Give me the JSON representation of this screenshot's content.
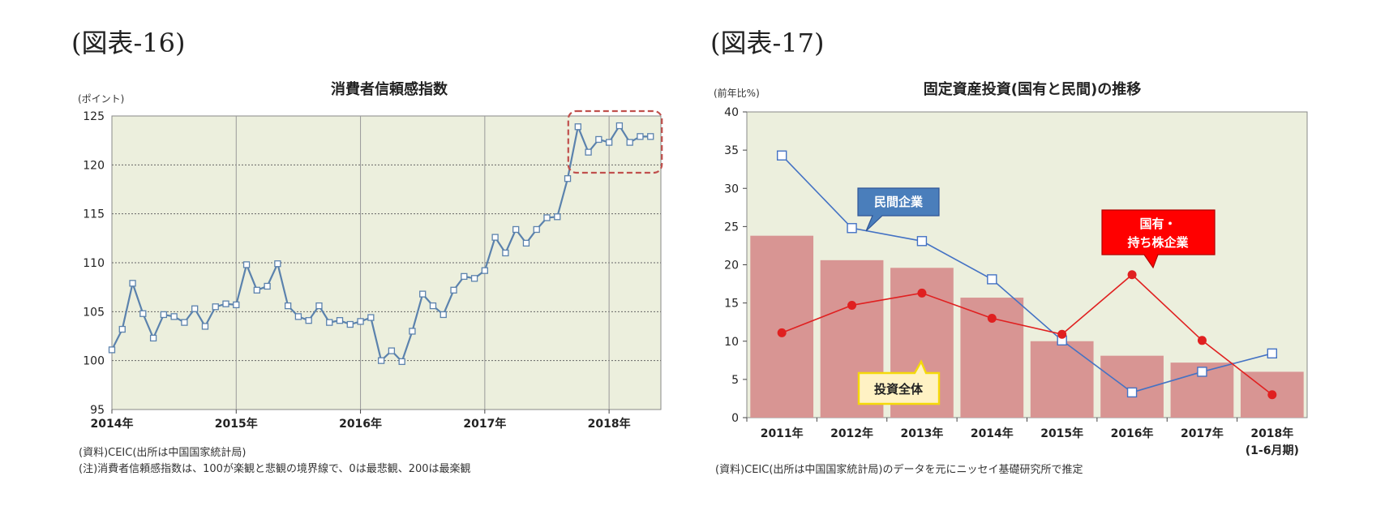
{
  "fig1": {
    "heading": "(図表-16)",
    "unit": "(ポイント)",
    "notes": [
      "(資料)CEIC(出所は中国国家統計局)",
      "(注)消費者信頼感指数は、100が楽観と悲観の境界線で、0は最悲観、200は最楽観"
    ]
  },
  "fig2": {
    "heading": "(図表-17)",
    "unit": "(前年比%)",
    "notes": [
      "(資料)CEIC(出所は中国国家統計局)のデータを元にニッセイ基礎研究所で推定"
    ]
  },
  "chart_data": [
    {
      "type": "line",
      "title": "消費者信頼感指数",
      "ylabel": "(ポイント)",
      "ylim": [
        95,
        125
      ],
      "yticks": [
        95,
        100,
        105,
        110,
        115,
        120,
        125
      ],
      "xlim": [
        "2014-01",
        "2018-06"
      ],
      "xticks": [
        "2014年",
        "2015年",
        "2016年",
        "2017年",
        "2018年"
      ],
      "grid": true,
      "highlight_box": {
        "from": "2017-10",
        "to": "2018-05",
        "ymin": 119.2,
        "ymax": 125.5
      },
      "series": [
        {
          "color": "#5b82ad",
          "x": [
            "2014-01",
            "2014-02",
            "2014-03",
            "2014-04",
            "2014-05",
            "2014-06",
            "2014-07",
            "2014-08",
            "2014-09",
            "2014-10",
            "2014-11",
            "2014-12",
            "2015-01",
            "2015-02",
            "2015-03",
            "2015-04",
            "2015-05",
            "2015-06",
            "2015-07",
            "2015-08",
            "2015-09",
            "2015-10",
            "2015-11",
            "2015-12",
            "2016-01",
            "2016-02",
            "2016-03",
            "2016-04",
            "2016-05",
            "2016-06",
            "2016-07",
            "2016-08",
            "2016-09",
            "2016-10",
            "2016-11",
            "2016-12",
            "2017-01",
            "2017-02",
            "2017-03",
            "2017-04",
            "2017-05",
            "2017-06",
            "2017-07",
            "2017-08",
            "2017-09",
            "2017-10",
            "2017-11",
            "2017-12",
            "2018-01",
            "2018-02",
            "2018-03",
            "2018-04",
            "2018-05"
          ],
          "values": [
            101.1,
            103.2,
            107.9,
            104.8,
            102.3,
            104.7,
            104.5,
            103.9,
            105.3,
            103.5,
            105.5,
            105.8,
            105.7,
            109.8,
            107.2,
            107.6,
            109.9,
            105.6,
            104.5,
            104.1,
            105.6,
            103.9,
            104.1,
            103.7,
            104.0,
            104.4,
            100.0,
            101.0,
            99.9,
            103.0,
            106.8,
            105.6,
            104.7,
            107.2,
            108.6,
            108.4,
            109.2,
            112.6,
            111.0,
            113.4,
            112.0,
            113.4,
            114.6,
            114.7,
            118.6,
            123.9,
            121.3,
            122.6,
            122.3,
            124.0,
            122.3,
            122.9,
            122.9
          ]
        }
      ]
    },
    {
      "type": "bar",
      "title": "固定資産投資(国有と民間)の推移",
      "ylabel": "(前年比%)",
      "ylim": [
        0,
        40
      ],
      "yticks": [
        0,
        5,
        10,
        15,
        20,
        25,
        30,
        35,
        40
      ],
      "categories": [
        "2011年",
        "2012年",
        "2013年",
        "2014年",
        "2015年",
        "2016年",
        "2017年",
        "2018年"
      ],
      "category_sublabels": [
        "",
        "",
        "",
        "",
        "",
        "",
        "",
        "(1-6月期)"
      ],
      "series": [
        {
          "name": "投資全体",
          "kind": "bar",
          "color": "#d89593",
          "values": [
            23.8,
            20.6,
            19.6,
            15.7,
            10.0,
            8.1,
            7.2,
            6.0
          ]
        },
        {
          "name": "民間企業",
          "kind": "line",
          "color": "#4472c4",
          "marker": "square",
          "values": [
            34.3,
            24.8,
            23.1,
            18.1,
            10.1,
            3.3,
            6.0,
            8.4
          ]
        },
        {
          "name": "国有・持ち株企業",
          "kind": "line",
          "color": "#e02020",
          "marker": "circle",
          "values": [
            11.1,
            14.7,
            16.3,
            13.0,
            10.9,
            18.7,
            10.1,
            3.0
          ]
        }
      ],
      "callouts": [
        {
          "text": "民間企業",
          "bg": "#4a7ebb"
        },
        {
          "text": "国有・\n持ち株企業",
          "bg": "#ff0000"
        },
        {
          "text": "投資全体",
          "bg": "#fff2c4"
        }
      ]
    }
  ]
}
